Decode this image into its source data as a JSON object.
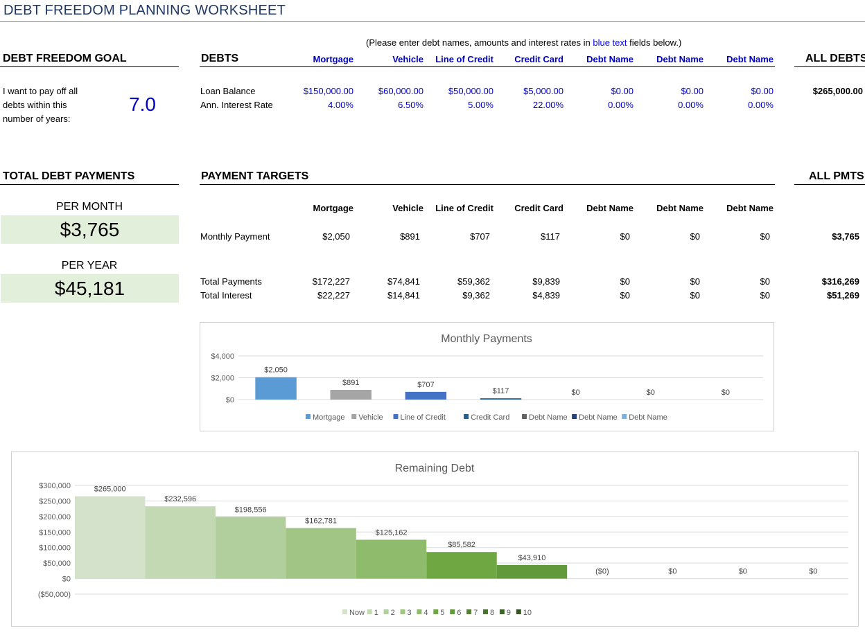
{
  "title": "DEBT FREEDOM PLANNING WORKSHEET",
  "note": {
    "prefix": "(Please enter debt names, amounts and interest rates in ",
    "blue": "blue text",
    "suffix": " fields below.)"
  },
  "goal": {
    "header": "DEBT FREEDOM GOAL",
    "text": "I want to pay off all debts within this number of years:",
    "years": "7.0"
  },
  "debts": {
    "header": "DEBTS",
    "names": [
      "Mortgage",
      "Vehicle",
      "Line of Credit",
      "Credit Card",
      "Debt Name",
      "Debt Name",
      "Debt Name"
    ],
    "row_labels": {
      "balance": "Loan Balance",
      "rate": "Ann. Interest Rate"
    },
    "balances": [
      "$150,000.00",
      "$60,000.00",
      "$50,000.00",
      "$5,000.00",
      "$0.00",
      "$0.00",
      "$0.00"
    ],
    "rates": [
      "4.00%",
      "6.50%",
      "5.00%",
      "22.00%",
      "0.00%",
      "0.00%",
      "0.00%"
    ],
    "all_header": "ALL DEBTS",
    "all_balance": "$265,000.00"
  },
  "total_payments": {
    "header": "TOTAL DEBT PAYMENTS",
    "per_month_label": "PER MONTH",
    "per_month": "$3,765",
    "per_year_label": "PER YEAR",
    "per_year": "$45,181"
  },
  "targets": {
    "header": "PAYMENT TARGETS",
    "names": [
      "Mortgage",
      "Vehicle",
      "Line of Credit",
      "Credit Card",
      "Debt Name",
      "Debt Name",
      "Debt Name"
    ],
    "row_labels": {
      "monthly": "Monthly Payment",
      "total": "Total Payments",
      "interest": "Total Interest"
    },
    "monthly": [
      "$2,050",
      "$891",
      "$707",
      "$117",
      "$0",
      "$0",
      "$0"
    ],
    "total": [
      "$172,227",
      "$74,841",
      "$59,362",
      "$9,839",
      "$0",
      "$0",
      "$0"
    ],
    "interest": [
      "$22,227",
      "$14,841",
      "$9,362",
      "$4,839",
      "$0",
      "$0",
      "$0"
    ],
    "all_header": "ALL PMTS",
    "all_monthly": "$3,765",
    "all_total": "$316,269",
    "all_interest": "$51,269"
  },
  "chart_data": [
    {
      "type": "bar",
      "title": "Monthly Payments",
      "categories": [
        "Mortgage",
        "Vehicle",
        "Line of Credit",
        "Credit Card",
        "Debt Name",
        "Debt Name",
        "Debt Name"
      ],
      "values": [
        2050,
        891,
        707,
        117,
        0,
        0,
        0
      ],
      "data_labels": [
        "$2,050",
        "$891",
        "$707",
        "$117",
        "$0",
        "$0",
        "$0"
      ],
      "colors": [
        "#5b9bd5",
        "#a5a5a5",
        "#4472c4",
        "#255e91",
        "#636363",
        "#264478",
        "#7cafdd"
      ],
      "yticks": [
        "$0",
        "$2,000",
        "$4,000"
      ],
      "ylim": [
        0,
        4000
      ],
      "grid": true,
      "legend": "bottom"
    },
    {
      "type": "bar",
      "title": "Remaining Debt",
      "categories": [
        "Now",
        "1",
        "2",
        "3",
        "4",
        "5",
        "6",
        "7",
        "8",
        "9",
        "10"
      ],
      "values": [
        265000,
        232596,
        198556,
        162781,
        125162,
        85582,
        43910,
        0,
        0,
        0,
        0
      ],
      "data_labels": [
        "$265,000",
        "$232,596",
        "$198,556",
        "$162,781",
        "$125,162",
        "$85,582",
        "$43,910",
        "($0)",
        "$0",
        "$0",
        "$0"
      ],
      "colors": [
        "#d5e2cb",
        "#c3d9b4",
        "#b1cf9d",
        "#a1c585",
        "#8fbb6d",
        "#6fa842",
        "#62993b",
        "#548235",
        "#4a7530",
        "#3f6629",
        "#355522"
      ],
      "yticks": [
        "($50,000)",
        "$0",
        "$50,000",
        "$100,000",
        "$150,000",
        "$200,000",
        "$250,000",
        "$300,000"
      ],
      "ylim": [
        -50000,
        300000
      ],
      "grid": true,
      "legend": "bottom"
    }
  ]
}
